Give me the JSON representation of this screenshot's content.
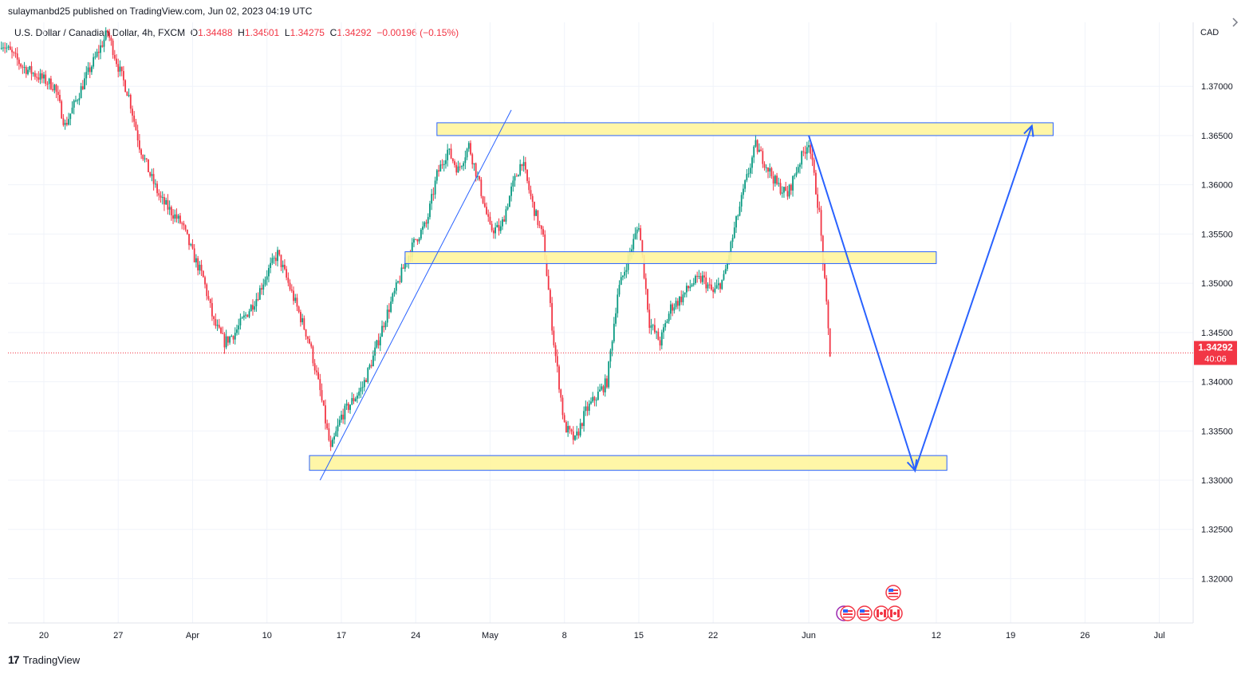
{
  "header": {
    "published": "sulaymanbd25 published on TradingView.com, Jun 02, 2023 04:19 UTC"
  },
  "legend": {
    "symbol": "U.S. Dollar / Canadian Dollar, 4h, FXCM",
    "o_label": "O",
    "o": "1.34488",
    "h_label": "H",
    "h": "1.34501",
    "l_label": "L",
    "l": "1.34275",
    "c_label": "C",
    "c": "1.34292",
    "change": "−0.00196 (−0.15%)"
  },
  "footer": {
    "logo": "17",
    "brand": "TradingView"
  },
  "colors": {
    "up": "#089981",
    "down": "#f23645",
    "zone_fill": "#fff59d",
    "zone_stroke": "#2962ff",
    "line": "#2962ff",
    "grid": "#f0f3fa",
    "axis_text": "#131722"
  },
  "chart_data": {
    "type": "candlestick",
    "currency": "CAD",
    "ylim": [
      1.3155,
      1.3765
    ],
    "y_ticks": [
      "1.32000",
      "1.32500",
      "1.33000",
      "1.33500",
      "1.34000",
      "1.34500",
      "1.35000",
      "1.35500",
      "1.36000",
      "1.36500",
      "1.37000"
    ],
    "x_ticks": [
      "20",
      "27",
      "Apr",
      "10",
      "17",
      "24",
      "May",
      "8",
      "15",
      "22",
      "Jun",
      "12",
      "19",
      "26",
      "Jul"
    ],
    "last_price": "1.34292",
    "countdown": "40:06",
    "path": [
      [
        "Mar 16",
        1.3745
      ],
      [
        "Mar 18",
        1.372
      ],
      [
        "Mar 21",
        1.37
      ],
      [
        "Mar 22",
        1.366
      ],
      [
        "Mar 24",
        1.371
      ],
      [
        "Mar 26",
        1.3755
      ],
      [
        "Mar 27",
        1.372
      ],
      [
        "Mar 28",
        1.369
      ],
      [
        "Mar 29",
        1.364
      ],
      [
        "Mar 30",
        1.361
      ],
      [
        "Mar 31",
        1.3585
      ],
      [
        "Apr 2",
        1.356
      ],
      [
        "Apr 3",
        1.353
      ],
      [
        "Apr 4",
        1.3505
      ],
      [
        "Apr 5",
        1.346
      ],
      [
        "Apr 6",
        1.344
      ],
      [
        "Apr 7",
        1.345
      ],
      [
        "Apr 9",
        1.3485
      ],
      [
        "Apr 10",
        1.351
      ],
      [
        "Apr 11",
        1.353
      ],
      [
        "Apr 12",
        1.35
      ],
      [
        "Apr 13",
        1.347
      ],
      [
        "Apr 14",
        1.344
      ],
      [
        "Apr 15",
        1.339
      ],
      [
        "Apr 16",
        1.333
      ],
      [
        "Apr 17",
        1.3365
      ],
      [
        "Apr 18",
        1.338
      ],
      [
        "Apr 19",
        1.3395
      ],
      [
        "Apr 20",
        1.3425
      ],
      [
        "Apr 21",
        1.346
      ],
      [
        "Apr 22",
        1.349
      ],
      [
        "Apr 23",
        1.352
      ],
      [
        "Apr 24",
        1.3545
      ],
      [
        "Apr 25",
        1.356
      ],
      [
        "Apr 26",
        1.361
      ],
      [
        "Apr 27",
        1.3635
      ],
      [
        "Apr 28",
        1.3615
      ],
      [
        "Apr 29",
        1.364
      ],
      [
        "Apr 30",
        1.36
      ],
      [
        "May 1",
        1.3555
      ],
      [
        "May 2",
        1.3555
      ],
      [
        "May 3",
        1.3595
      ],
      [
        "May 4",
        1.3625
      ],
      [
        "May 5",
        1.358
      ],
      [
        "May 6",
        1.3545
      ],
      [
        "May 7",
        1.344
      ],
      [
        "May 8",
        1.3355
      ],
      [
        "May 9",
        1.334
      ],
      [
        "May 10",
        1.337
      ],
      [
        "May 11",
        1.3385
      ],
      [
        "May 12",
        1.34
      ],
      [
        "May 13",
        1.349
      ],
      [
        "May 14",
        1.3525
      ],
      [
        "May 15",
        1.356
      ],
      [
        "May 16",
        1.346
      ],
      [
        "May 17",
        1.344
      ],
      [
        "May 18",
        1.3475
      ],
      [
        "May 19",
        1.3485
      ],
      [
        "May 20",
        1.35
      ],
      [
        "May 21",
        1.3505
      ],
      [
        "May 22",
        1.349
      ],
      [
        "May 23",
        1.3505
      ],
      [
        "May 24",
        1.3555
      ],
      [
        "May 25",
        1.36
      ],
      [
        "May 26",
        1.364
      ],
      [
        "May 27",
        1.362
      ],
      [
        "May 28",
        1.36
      ],
      [
        "May 29",
        1.359
      ],
      [
        "May 30",
        1.362
      ],
      [
        "May 31",
        1.3645
      ],
      [
        "Jun 1",
        1.357
      ],
      [
        "Jun 2",
        1.3429
      ]
    ],
    "annotations": {
      "zones": [
        {
          "x0": "Apr 26",
          "x1": "Jun 23",
          "y0": 1.365,
          "y1": 1.3663
        },
        {
          "x0": "Apr 23",
          "x1": "Jun 12",
          "y0": 1.352,
          "y1": 1.3532
        },
        {
          "x0": "Apr 14",
          "x1": "Jun 13",
          "y0": 1.331,
          "y1": 1.3325
        }
      ],
      "trendline": {
        "x0": "Apr 15",
        "y0": 1.33,
        "x1": "May 3",
        "y1": 1.3676
      },
      "projection": [
        [
          "May 31",
          1.365
        ],
        [
          "Jun 10",
          1.331
        ],
        [
          "Jun 21",
          1.366
        ]
      ]
    }
  }
}
